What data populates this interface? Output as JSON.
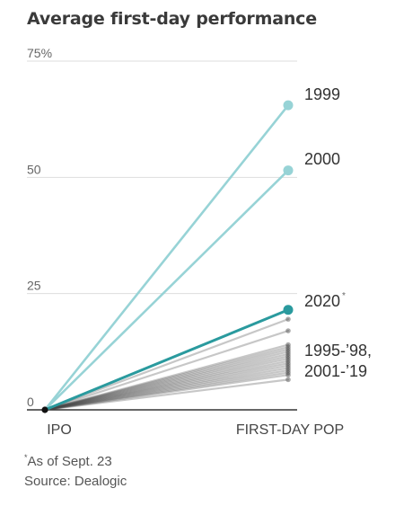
{
  "chart_data": {
    "type": "line",
    "title": "Average first-day performance",
    "x_categories": [
      "IPO",
      "FIRST-DAY POP"
    ],
    "ylim": [
      0,
      75
    ],
    "y_ticks": [
      {
        "value": 0,
        "label": "0"
      },
      {
        "value": 25,
        "label": "25"
      },
      {
        "value": 50,
        "label": "50"
      },
      {
        "value": 75,
        "label": "75%"
      }
    ],
    "grid": true,
    "colors": {
      "highlight_bubble": "#97d3d6",
      "year_2020": "#2a9a9e",
      "other_years": "#444444",
      "origin": "#111111",
      "gridline": "#dddddd",
      "baseline": "#333333"
    },
    "series": [
      {
        "name": "1999",
        "values": [
          0,
          65.5
        ],
        "group": "bubble"
      },
      {
        "name": "2000",
        "values": [
          0,
          51.5
        ],
        "group": "bubble"
      },
      {
        "name": "2020",
        "marker": "*",
        "values": [
          0,
          21.5
        ],
        "group": "2020"
      },
      {
        "values": [
          0,
          19.5
        ],
        "group": "other"
      },
      {
        "values": [
          0,
          17
        ],
        "group": "other"
      },
      {
        "values": [
          0,
          14
        ],
        "group": "other"
      },
      {
        "values": [
          0,
          13.5
        ],
        "group": "other"
      },
      {
        "values": [
          0,
          13
        ],
        "group": "other"
      },
      {
        "values": [
          0,
          12.5
        ],
        "group": "other"
      },
      {
        "values": [
          0,
          12
        ],
        "group": "other"
      },
      {
        "values": [
          0,
          11.5
        ],
        "group": "other"
      },
      {
        "values": [
          0,
          11
        ],
        "group": "other"
      },
      {
        "values": [
          0,
          10.5
        ],
        "group": "other"
      },
      {
        "values": [
          0,
          10
        ],
        "group": "other"
      },
      {
        "values": [
          0,
          9.5
        ],
        "group": "other"
      },
      {
        "values": [
          0,
          9
        ],
        "group": "other"
      },
      {
        "values": [
          0,
          8.5
        ],
        "group": "other"
      },
      {
        "values": [
          0,
          8
        ],
        "group": "other"
      },
      {
        "values": [
          0,
          7.5
        ],
        "group": "other"
      },
      {
        "values": [
          0,
          6.5
        ],
        "group": "other"
      }
    ],
    "annotations": {
      "label_1999": "1999",
      "label_2000": "2000",
      "label_2020": "2020",
      "label_2020_marker": "*",
      "label_others_line1": "1995-’98,",
      "label_others_line2": "2001-’19"
    }
  },
  "footer": {
    "note_marker": "*",
    "note_text": "As of Sept. 23",
    "source": "Source: Dealogic"
  }
}
